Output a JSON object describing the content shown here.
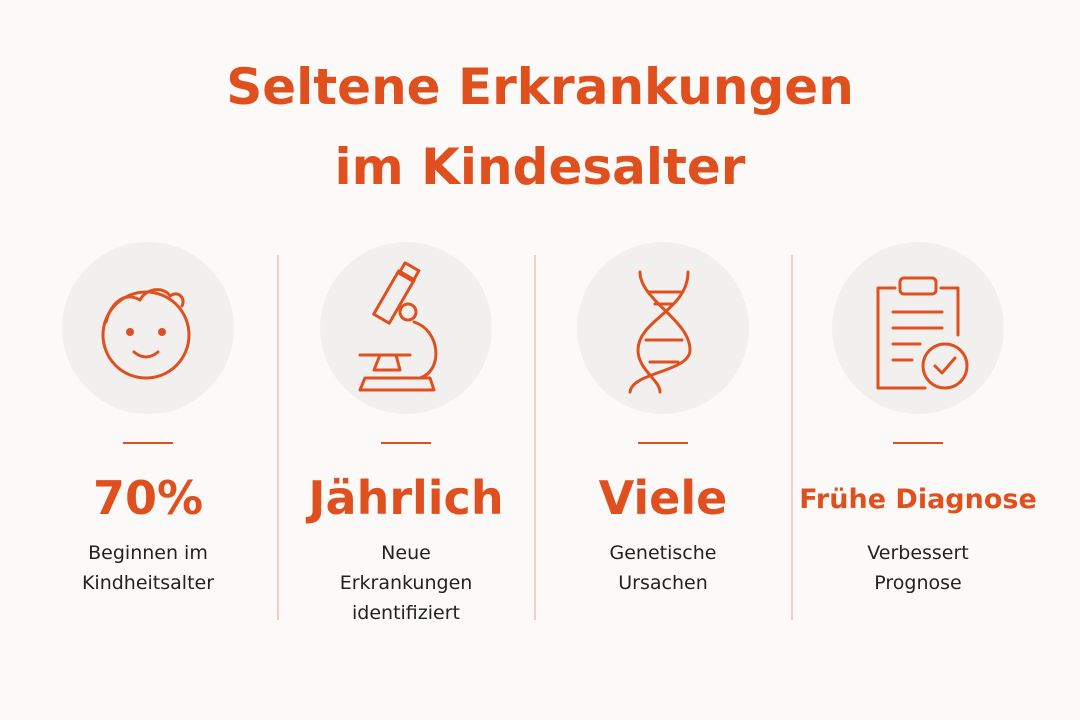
{
  "title": [
    "Seltene Erkrankungen",
    "im Kindesalter"
  ],
  "items": [
    {
      "headline": "70%",
      "text": [
        "Beginnen im",
        "Kindheitsalter"
      ]
    },
    {
      "headline": "Jährlich",
      "text": [
        "Neue",
        "Erkrankungen",
        "identifiziert"
      ]
    },
    {
      "headline": "Viele",
      "text": [
        "Genetische",
        "Ursachen"
      ]
    },
    {
      "headline": "Frühe Diagnose",
      "text": [
        "Verbessert",
        "Prognose"
      ]
    }
  ]
}
